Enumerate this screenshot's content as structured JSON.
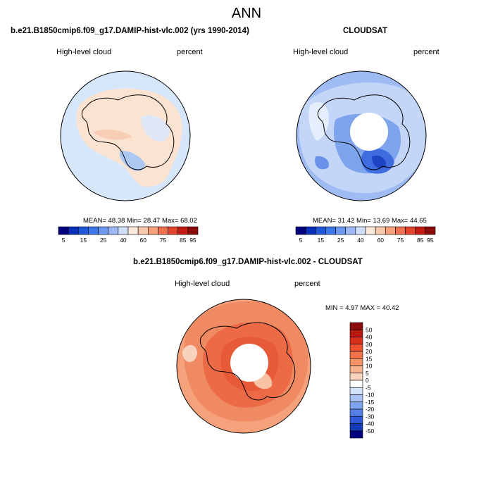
{
  "main_title": "ANN",
  "panels": [
    {
      "title": "b.e21.B1850cmip6.f09_g17.DAMIP-hist-vlc.002 (yrs 1990-2014)",
      "left_label": "High-level cloud",
      "right_label": "percent",
      "stats": "MEAN=  48.38  Min=  28.47  Max=  68.02"
    },
    {
      "title": "CLOUDSAT",
      "left_label": "High-level cloud",
      "right_label": "percent",
      "stats": "MEAN=  31.42  Min=  13.69  Max=  44.65"
    },
    {
      "title": "b.e21.B1850cmip6.f09_g17.DAMIP-hist-vlc.002 - CLOUDSAT",
      "left_label": "High-level cloud",
      "right_label": "percent",
      "stats": "MIN =   4.97 MAX =  40.42"
    }
  ],
  "chart_data": [
    {
      "type": "heatmap",
      "projection": "south-polar stereographic",
      "title": "b.e21.B1850cmip6.f09_g17.DAMIP-hist-vlc.002 (yrs 1990-2014)",
      "variable": "High-level cloud",
      "units": "percent",
      "mean": 48.38,
      "min": 28.47,
      "max": 68.02,
      "colorbar": {
        "orientation": "horizontal",
        "tick_labels": [
          "5",
          "15",
          "25",
          "40",
          "60",
          "75",
          "85",
          "95"
        ],
        "colors": [
          "#00007f",
          "#0a2fb8",
          "#1f57d8",
          "#3d78e8",
          "#6d98ef",
          "#9db9f4",
          "#cfdff9",
          "#fbe9dc",
          "#f8c8ac",
          "#f4a17c",
          "#ee7152",
          "#e2452c",
          "#c31d13",
          "#8b0a0a"
        ]
      }
    },
    {
      "type": "heatmap",
      "projection": "south-polar stereographic",
      "title": "CLOUDSAT",
      "variable": "High-level cloud",
      "units": "percent",
      "mean": 31.42,
      "min": 13.69,
      "max": 44.65,
      "colorbar": {
        "orientation": "horizontal",
        "tick_labels": [
          "5",
          "15",
          "25",
          "40",
          "60",
          "75",
          "85",
          "95"
        ],
        "colors": [
          "#00007f",
          "#0a2fb8",
          "#1f57d8",
          "#3d78e8",
          "#6d98ef",
          "#9db9f4",
          "#cfdff9",
          "#fbe9dc",
          "#f8c8ac",
          "#f4a17c",
          "#ee7152",
          "#e2452c",
          "#c31d13",
          "#8b0a0a"
        ]
      }
    },
    {
      "type": "heatmap",
      "projection": "south-polar stereographic",
      "title": "b.e21.B1850cmip6.f09_g17.DAMIP-hist-vlc.002 - CLOUDSAT",
      "variable": "High-level cloud",
      "units": "percent",
      "min": 4.97,
      "max": 40.42,
      "colorbar": {
        "orientation": "vertical",
        "tick_labels": [
          "50",
          "40",
          "30",
          "20",
          "15",
          "10",
          "5",
          "0",
          "-5",
          "-10",
          "-15",
          "-20",
          "-30",
          "-40",
          "-50"
        ],
        "colors": [
          "#8b0a0a",
          "#b8190f",
          "#d9301c",
          "#ec5230",
          "#f27349",
          "#f59468",
          "#f7b28f",
          "#fad3be",
          "#ffffff",
          "#d2e2fb",
          "#a9c3f5",
          "#7ea3ee",
          "#557fe6",
          "#2f59d8",
          "#143ab8",
          "#00007f"
        ]
      }
    }
  ]
}
